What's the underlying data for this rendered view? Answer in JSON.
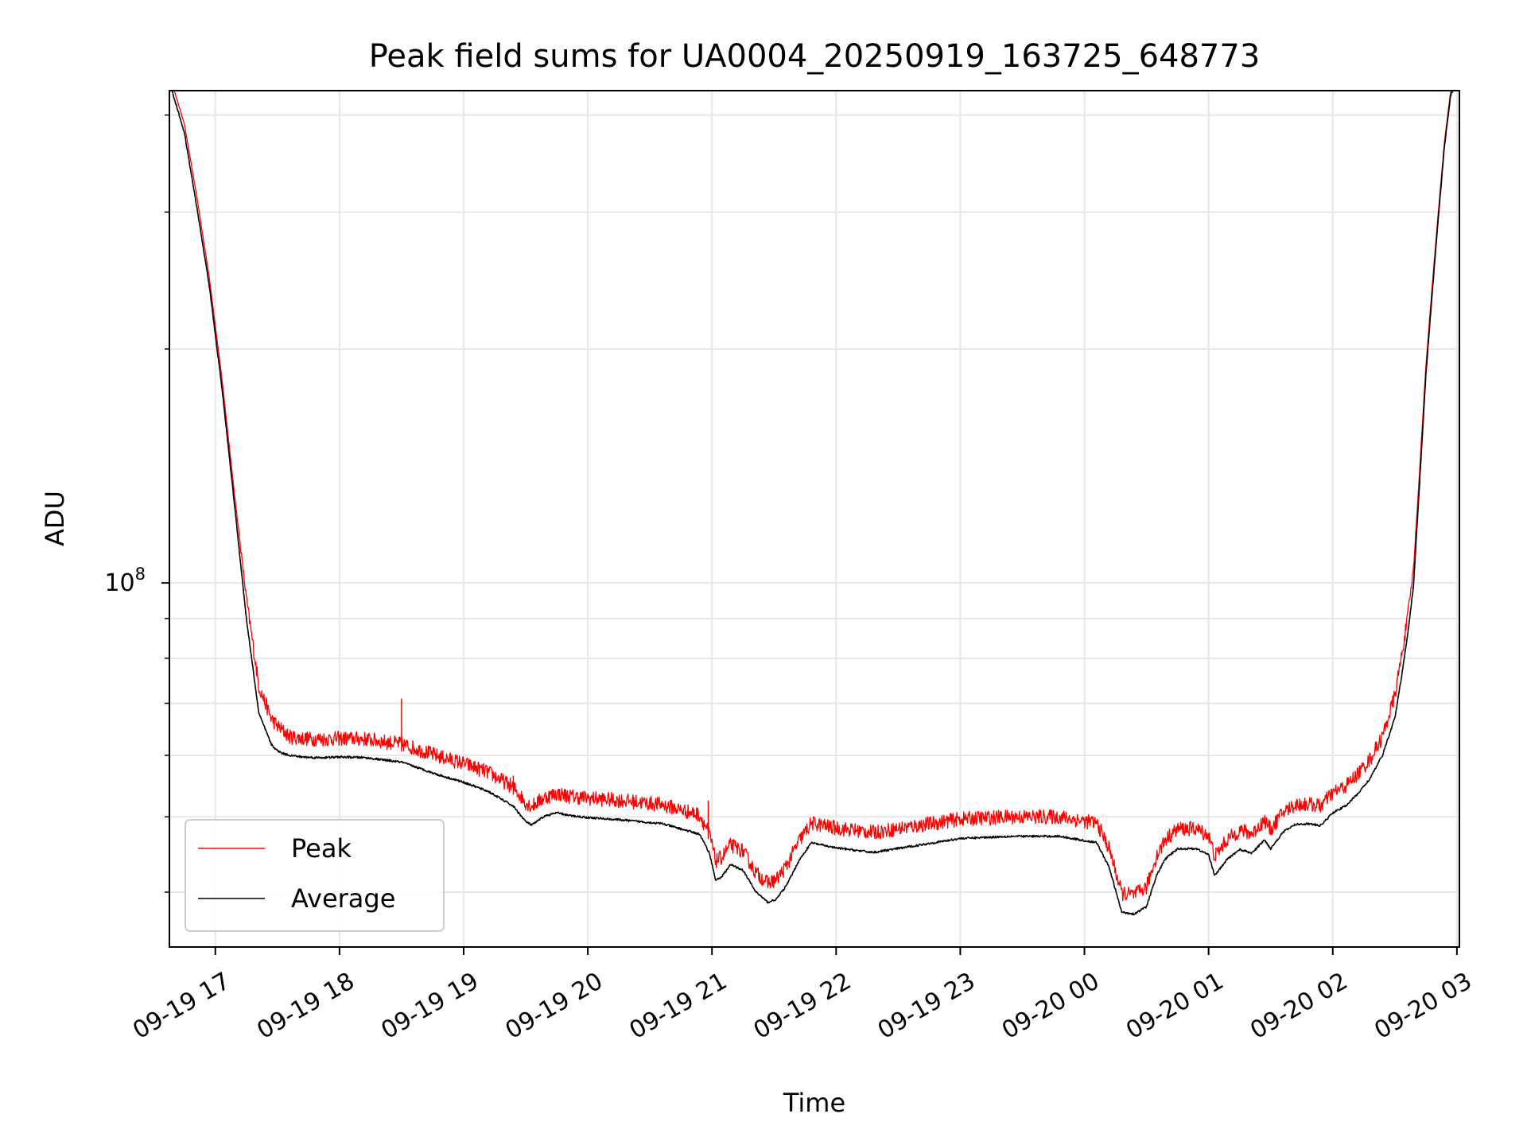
{
  "chart_data": {
    "type": "line",
    "title": "Peak field sums for UA0004_20250919_163725_648773",
    "xlabel": "Time",
    "ylabel": "ADU",
    "yscale": "log",
    "grid": true,
    "legend_position": "lower-left",
    "x_unit": "hours since 09-19 17:00",
    "xlim": [
      -0.37,
      10.02
    ],
    "ylim": [
      34000000,
      430000000
    ],
    "x_ticks": [
      {
        "x": 0,
        "label": "09-19 17"
      },
      {
        "x": 1,
        "label": "09-19 18"
      },
      {
        "x": 2,
        "label": "09-19 19"
      },
      {
        "x": 3,
        "label": "09-19 20"
      },
      {
        "x": 4,
        "label": "09-19 21"
      },
      {
        "x": 5,
        "label": "09-19 22"
      },
      {
        "x": 6,
        "label": "09-19 23"
      },
      {
        "x": 7,
        "label": "09-20 00"
      },
      {
        "x": 8,
        "label": "09-20 01"
      },
      {
        "x": 9,
        "label": "09-20 02"
      },
      {
        "x": 10,
        "label": "09-20 03"
      }
    ],
    "y_major_ticks": [
      {
        "value": 100000000,
        "label_base": "10",
        "label_exp": "8"
      }
    ],
    "y_minor_ticks": [
      40000000,
      50000000,
      60000000,
      70000000,
      80000000,
      90000000,
      200000000,
      300000000,
      400000000
    ],
    "series": [
      {
        "name": "Peak",
        "color": "#ff0000",
        "noise_amplitude": 0.045,
        "x": [
          -0.35,
          -0.25,
          -0.15,
          -0.05,
          0.05,
          0.15,
          0.25,
          0.35,
          0.45,
          0.5,
          0.55,
          0.6,
          0.7,
          0.8,
          0.9,
          1.0,
          1.2,
          1.5,
          1.8,
          2.0,
          2.2,
          2.4,
          2.5,
          2.55,
          2.65,
          2.75,
          2.85,
          3.0,
          3.3,
          3.6,
          3.9,
          3.98,
          4.03,
          4.08,
          4.15,
          4.25,
          4.35,
          4.45,
          4.52,
          4.6,
          4.7,
          4.8,
          5.0,
          5.3,
          5.6,
          6.0,
          6.4,
          6.8,
          7.1,
          7.2,
          7.3,
          7.4,
          7.5,
          7.58,
          7.65,
          7.75,
          7.9,
          8.0,
          8.05,
          8.15,
          8.25,
          8.35,
          8.45,
          8.5,
          8.6,
          8.7,
          8.8,
          8.9,
          9.0,
          9.1,
          9.2,
          9.3,
          9.4,
          9.5,
          9.55,
          9.6,
          9.65,
          9.7,
          9.75,
          9.8,
          9.85,
          9.9,
          9.95,
          10.0
        ],
        "y": [
          440000000,
          390000000,
          315000000,
          248000000,
          185000000,
          132000000,
          94000000,
          72000000,
          65500000,
          64000000,
          63000000,
          62000000,
          61700000,
          61600000,
          61600000,
          61700000,
          61600000,
          60700000,
          58500000,
          57300000,
          55800000,
          53400000,
          51000000,
          50500000,
          51800000,
          52400000,
          52000000,
          51700000,
          51300000,
          50700000,
          49200000,
          46500000,
          42900000,
          43400000,
          45000000,
          44200000,
          41500000,
          40200000,
          40600000,
          42300000,
          45500000,
          48000000,
          47300000,
          46700000,
          47500000,
          48600000,
          48900000,
          48900000,
          48000000,
          44500000,
          39000000,
          38800000,
          39700000,
          43500000,
          45700000,
          47200000,
          47200000,
          46300000,
          43500000,
          45700000,
          47000000,
          46500000,
          48400000,
          47100000,
          49600000,
          50700000,
          50800000,
          50500000,
          52500000,
          53500000,
          55500000,
          58000000,
          62000000,
          70000000,
          78000000,
          88000000,
          103000000,
          140000000,
          190000000,
          240000000,
          300000000,
          370000000,
          430000000,
          440000000
        ],
        "spikes": [
          {
            "x": 1.5,
            "y": 71000000
          },
          {
            "x": 2.4,
            "y": 56500000
          },
          {
            "x": 3.97,
            "y": 52500000
          }
        ]
      },
      {
        "name": "Average",
        "color": "#000000",
        "x": [
          -0.35,
          -0.25,
          -0.15,
          -0.05,
          0.05,
          0.15,
          0.25,
          0.35,
          0.45,
          0.5,
          0.55,
          0.6,
          0.7,
          0.8,
          0.9,
          1.0,
          1.2,
          1.5,
          1.8,
          2.0,
          2.2,
          2.4,
          2.5,
          2.55,
          2.65,
          2.75,
          2.85,
          3.0,
          3.3,
          3.6,
          3.9,
          3.98,
          4.03,
          4.08,
          4.15,
          4.25,
          4.35,
          4.45,
          4.52,
          4.6,
          4.7,
          4.8,
          5.0,
          5.3,
          5.6,
          6.0,
          6.4,
          6.8,
          7.1,
          7.2,
          7.3,
          7.4,
          7.5,
          7.58,
          7.65,
          7.75,
          7.9,
          8.0,
          8.05,
          8.15,
          8.25,
          8.35,
          8.45,
          8.5,
          8.6,
          8.7,
          8.8,
          8.9,
          9.0,
          9.1,
          9.2,
          9.3,
          9.4,
          9.5,
          9.55,
          9.6,
          9.65,
          9.7,
          9.75,
          9.8,
          9.85,
          9.9,
          9.95,
          10.0
        ],
        "y": [
          430000000,
          380000000,
          305000000,
          242000000,
          180000000,
          128000000,
          90000000,
          68000000,
          62000000,
          60800000,
          60300000,
          60000000,
          59700000,
          59600000,
          59600000,
          59700000,
          59600000,
          58800000,
          56600000,
          55400000,
          53900000,
          51600000,
          49300000,
          48800000,
          50100000,
          50600000,
          50200000,
          49900000,
          49500000,
          49000000,
          47500000,
          44900000,
          41400000,
          41900000,
          43400000,
          42700000,
          40100000,
          38800000,
          39200000,
          40800000,
          43900000,
          46300000,
          45600000,
          45000000,
          45800000,
          46900000,
          47200000,
          47200000,
          46300000,
          43000000,
          37700000,
          37500000,
          38300000,
          42000000,
          44100000,
          45500000,
          45500000,
          44700000,
          42000000,
          44100000,
          45400000,
          44900000,
          46700000,
          45500000,
          47800000,
          48900000,
          49000000,
          48700000,
          50600000,
          51600000,
          53500000,
          56000000,
          60000000,
          67000000,
          75000000,
          85000000,
          99000000,
          135000000,
          185000000,
          235000000,
          295000000,
          365000000,
          425000000,
          440000000
        ]
      }
    ]
  }
}
